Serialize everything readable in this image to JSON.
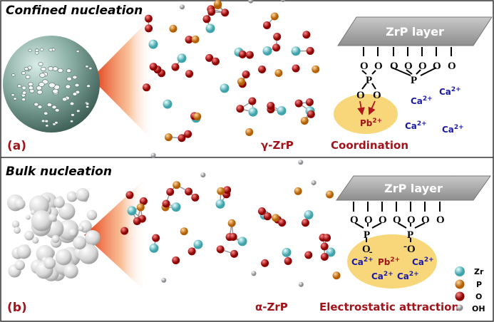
{
  "panel_a": {
    "title": "Confined nucleation",
    "label": "(a)",
    "structure_label": "γ-ZrP",
    "mechanism_label": "Coordination",
    "layer_label": "ZrP layer",
    "oxygen": "O",
    "phosphorus": "P",
    "lead_ion": "Pb",
    "calcium_ion": "Ca",
    "charge": "2+"
  },
  "panel_b": {
    "title": "Bulk nucleation",
    "label": "(b)",
    "structure_label": "α-ZrP",
    "mechanism_label": "Electrostatic attraction",
    "layer_label": "ZrP layer",
    "oxygen": "O",
    "phosphorus": "P",
    "minus": "-",
    "lead_ion": "Pb",
    "calcium_ion": "Ca",
    "charge": "2+"
  },
  "legend": [
    {
      "label": "Zr",
      "color": "#7fd3d8"
    },
    {
      "label": "P",
      "color": "#e38a1a"
    },
    {
      "label": "O",
      "color": "#d40f0f"
    },
    {
      "label": "OH",
      "color": "#c8c8cc"
    }
  ],
  "colors": {
    "accent_red": "#a0141c",
    "ion_blue": "#1a1aa8",
    "ellipse": "#f7d779",
    "layer": "#a7a7a7",
    "sphere": "#7fa59a"
  }
}
